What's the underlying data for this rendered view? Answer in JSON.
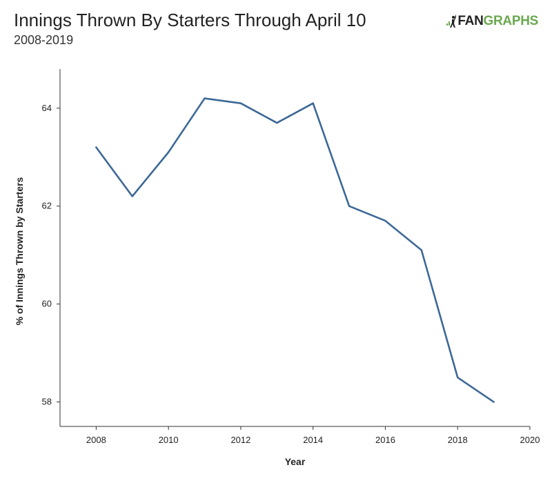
{
  "header": {
    "logo_text_dark": "FAN",
    "logo_text_green": "GRAPHS",
    "brand_green": "#6aa84f"
  },
  "chart_data": {
    "type": "line",
    "title": "Innings Thrown By Starters Through April 10",
    "subtitle": "2008-2019",
    "xlabel": "Year",
    "ylabel": "% of Innings Thrown by Starters",
    "x": [
      2008,
      2009,
      2010,
      2011,
      2012,
      2013,
      2014,
      2015,
      2016,
      2017,
      2018,
      2019
    ],
    "series": [
      {
        "values": [
          63.2,
          62.2,
          63.1,
          64.2,
          64.1,
          63.7,
          64.1,
          62.0,
          61.7,
          61.1,
          58.5,
          58.0
        ],
        "color": "#3c6896"
      }
    ],
    "xlim": [
      2007,
      2020
    ],
    "ylim": [
      57.5,
      64.8
    ],
    "xticks": [
      2008,
      2010,
      2012,
      2014,
      2016,
      2018,
      2020
    ],
    "yticks": [
      58,
      60,
      62,
      64
    ],
    "grid": false,
    "legend": "none"
  }
}
